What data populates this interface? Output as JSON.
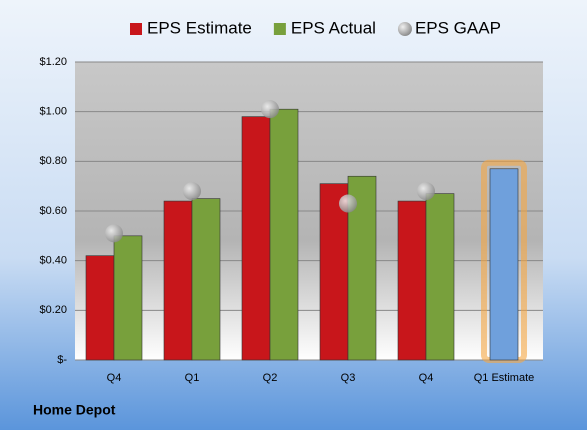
{
  "chart_data": {
    "type": "bar",
    "footer": "Home Depot",
    "categories": [
      "Q4",
      "Q1",
      "Q2",
      "Q3",
      "Q4",
      "Q1 Estimate"
    ],
    "series": [
      {
        "name": "EPS Estimate",
        "color": "#c8161b",
        "point_colors": [
          "#c8161b",
          "#c8161b",
          "#c8161b",
          "#c8161b",
          "#c8161b",
          "#6fa0dc"
        ],
        "values": [
          0.42,
          0.64,
          0.98,
          0.71,
          0.64,
          0.77
        ]
      },
      {
        "name": "EPS Actual",
        "color": "#78a03c",
        "values": [
          0.5,
          0.65,
          1.01,
          0.74,
          0.67,
          null
        ]
      },
      {
        "name": "EPS GAAP",
        "color": "#a0a0a0",
        "marker": "circle",
        "values": [
          0.51,
          0.68,
          1.01,
          0.63,
          0.68,
          null
        ]
      }
    ],
    "ylim": [
      0,
      1.2
    ],
    "yticks": [
      {
        "value": 0,
        "label": "$-"
      },
      {
        "value": 0.2,
        "label": "$0.20"
      },
      {
        "value": 0.4,
        "label": "$0.40"
      },
      {
        "value": 0.6,
        "label": "$0.60"
      },
      {
        "value": 0.8,
        "label": "$0.80"
      },
      {
        "value": 1.0,
        "label": "$1.00"
      },
      {
        "value": 1.2,
        "label": "$1.20"
      }
    ],
    "grid": true
  }
}
